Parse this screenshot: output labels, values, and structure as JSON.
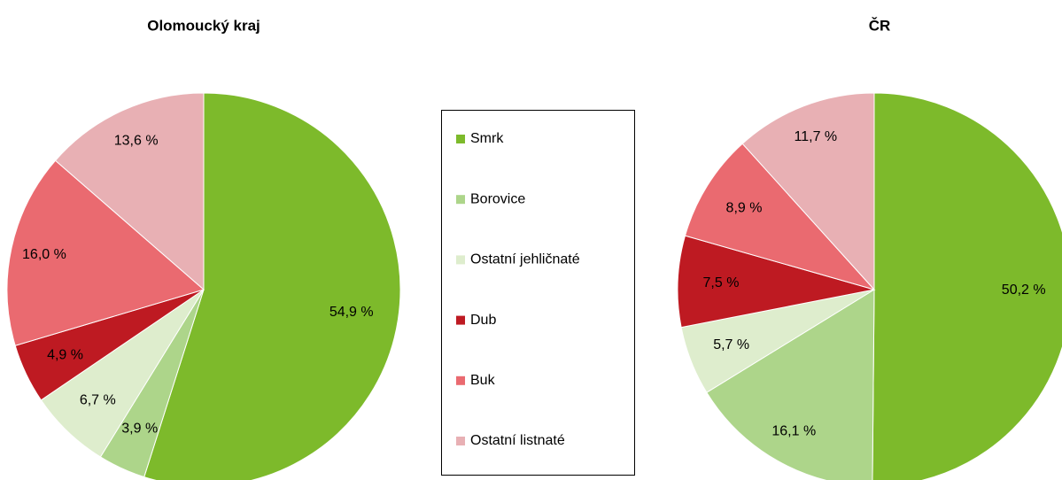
{
  "chart_data": [
    {
      "type": "pie",
      "title": "Olomoucký kraj",
      "categories": [
        "Smrk",
        "Borovice",
        "Ostatní jehličnaté",
        "Dub",
        "Buk",
        "Ostatní listnaté"
      ],
      "values": [
        54.9,
        3.9,
        6.7,
        4.9,
        16.0,
        13.6
      ],
      "value_labels": [
        "54,9 %",
        "3,9 %",
        "6,7 %",
        "4,9 %",
        "16,0 %",
        "13,6 %"
      ],
      "colors": [
        "#7dba2b",
        "#add58a",
        "#deedcd",
        "#be1a22",
        "#ea6a70",
        "#e8b0b4"
      ],
      "legend": "between"
    },
    {
      "type": "pie",
      "title": "ČR",
      "categories": [
        "Smrk",
        "Borovice",
        "Ostatní jehličnaté",
        "Dub",
        "Buk",
        "Ostatní listnaté"
      ],
      "values": [
        50.2,
        16.1,
        5.7,
        7.5,
        8.9,
        11.7
      ],
      "value_labels": [
        "50,2 %",
        "16,1 %",
        "5,7 %",
        "7,5 %",
        "8,9 %",
        "11,7 %"
      ],
      "colors": [
        "#7dba2b",
        "#add58a",
        "#deedcd",
        "#be1a22",
        "#ea6a70",
        "#e8b0b4"
      ]
    }
  ]
}
